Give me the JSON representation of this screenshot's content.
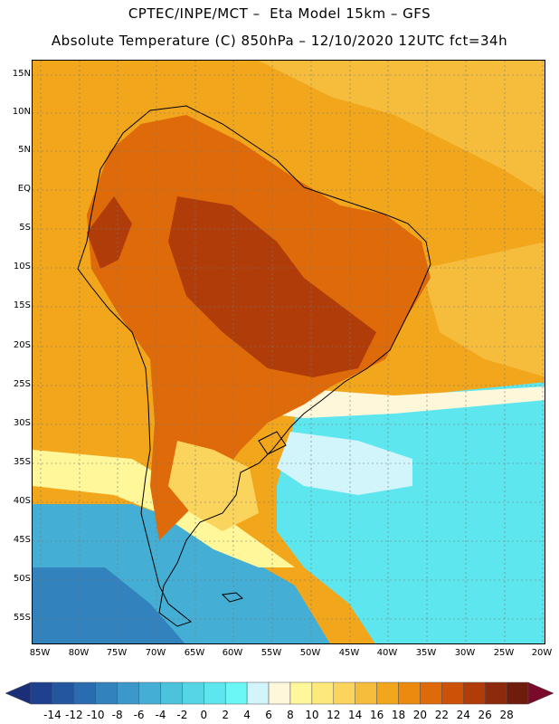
{
  "title_line1": "CPTEC/INPE/MCT –  Eta Model 15km – GFS",
  "title_line2": "Absolute Temperature (C) 850hPa – 12/10/2020 12UTC fct=34h",
  "lat_labels": [
    "15N",
    "10N",
    "5N",
    "EQ",
    "5S",
    "10S",
    "15S",
    "20S",
    "25S",
    "30S",
    "35S",
    "40S",
    "45S",
    "50S",
    "55S"
  ],
  "lon_labels": [
    "85W",
    "80W",
    "75W",
    "70W",
    "65W",
    "60W",
    "55W",
    "50W",
    "45W",
    "40W",
    "35W",
    "30W",
    "25W",
    "20W"
  ],
  "colorbar": {
    "labels": [
      "-14",
      "-12",
      "-10",
      "-8",
      "-6",
      "-4",
      "-2",
      "0",
      "2",
      "4",
      "6",
      "8",
      "10",
      "12",
      "14",
      "16",
      "18",
      "20",
      "22",
      "24",
      "26",
      "28"
    ],
    "colors": [
      "#1f3f8f",
      "#2456a0",
      "#2a6cb0",
      "#3282bd",
      "#3b98c9",
      "#44aed4",
      "#4cc2dd",
      "#55d5e6",
      "#5ee6ee",
      "#6cf7f7",
      "#d2f4fb",
      "#fff7da",
      "#fff79a",
      "#fde87a",
      "#fad45c",
      "#f6bd3c",
      "#f2a61c",
      "#eb8a0e",
      "#de6a0a",
      "#cc5208",
      "#b03c0a",
      "#8e2a0c",
      "#6e1c0c"
    ],
    "under_color": "#1b2f78",
    "over_color": "#7a0a2a"
  },
  "map": {
    "field": "Absolute Temperature (C) 850hPa",
    "background_color": "#f2a61c",
    "regions": [
      {
        "name": "north-atlantic-warm",
        "color": "#f6bd3c"
      },
      {
        "name": "continent-hot",
        "color": "#de6a0a"
      },
      {
        "name": "continent-core",
        "color": "#b03c0a"
      },
      {
        "name": "patagonia-cool",
        "color": "#fad45c"
      },
      {
        "name": "southern-ocean",
        "color": "#44aed4"
      },
      {
        "name": "south-atlantic-cold",
        "color": "#5ee6ee"
      }
    ]
  }
}
